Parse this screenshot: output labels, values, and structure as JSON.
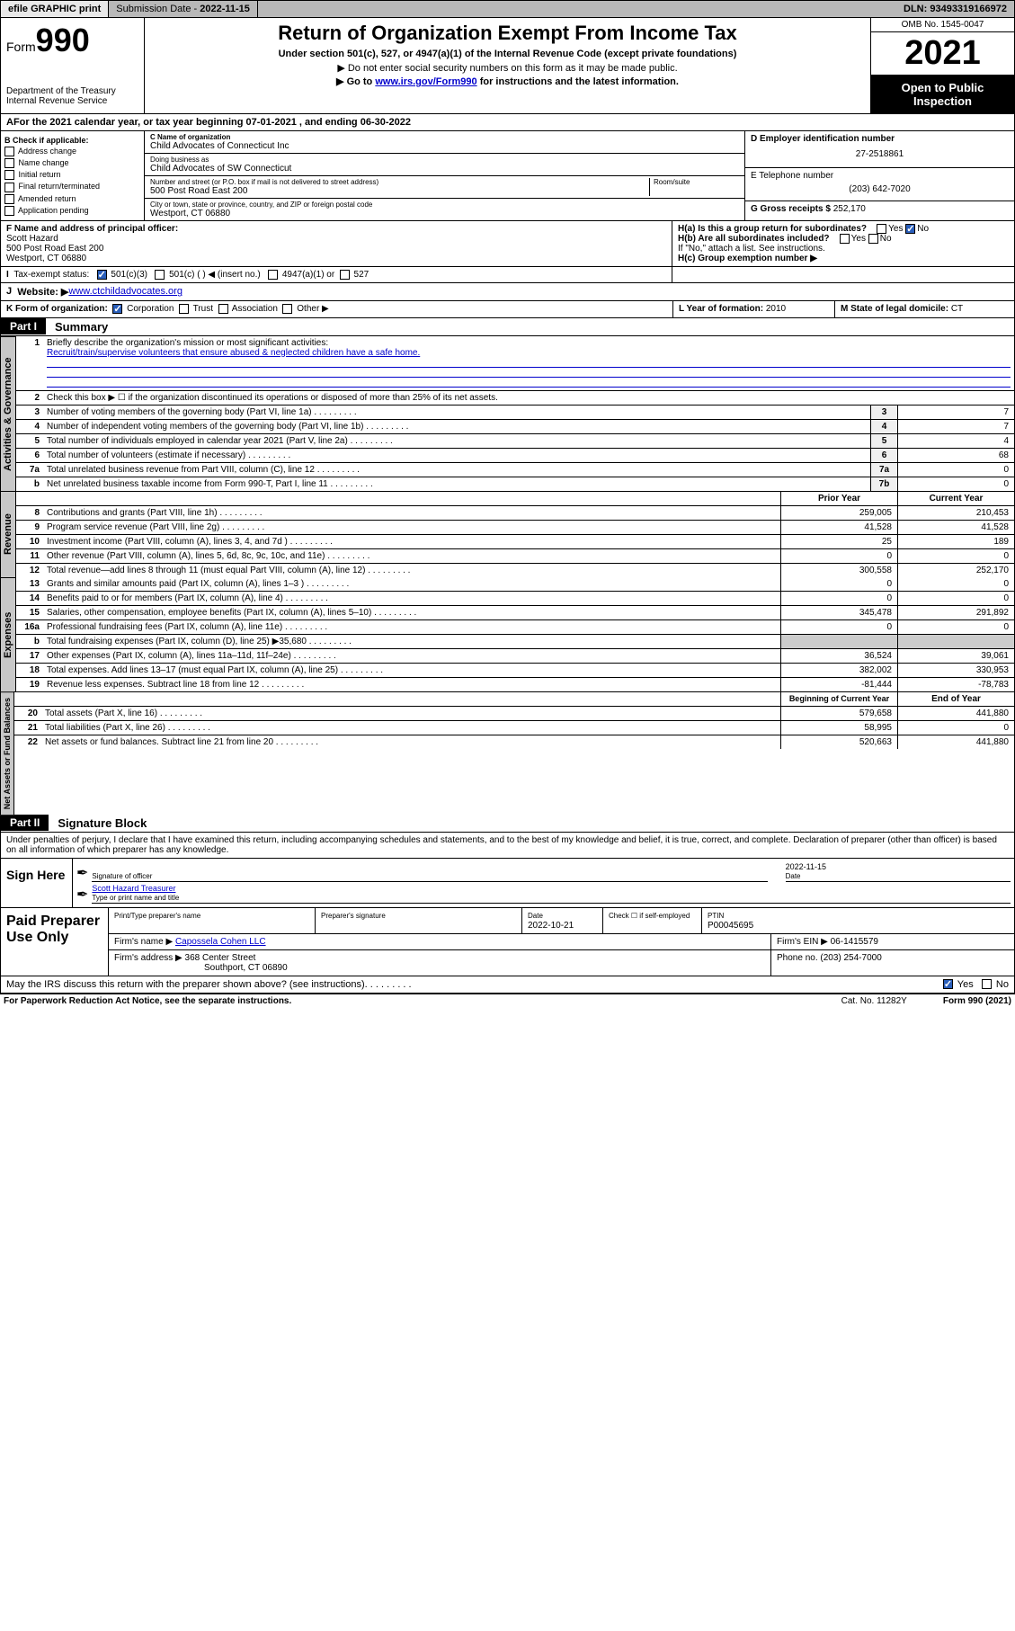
{
  "topbar": {
    "efile": "efile GRAPHIC print",
    "submission_label": "Submission Date - ",
    "submission_date": "2022-11-15",
    "dln_label": "DLN: ",
    "dln": "93493319166972"
  },
  "header": {
    "form_prefix": "Form",
    "form_num": "990",
    "dept": "Department of the Treasury\nInternal Revenue Service",
    "title": "Return of Organization Exempt From Income Tax",
    "sub": "Under section 501(c), 527, or 4947(a)(1) of the Internal Revenue Code (except private foundations)",
    "note1": "▶ Do not enter social security numbers on this form as it may be made public.",
    "note2_pre": "▶ Go to ",
    "note2_link": "www.irs.gov/Form990",
    "note2_post": " for instructions and the latest information.",
    "omb": "OMB No. 1545-0047",
    "year": "2021",
    "inspect": "Open to Public Inspection"
  },
  "lineA": "For the 2021 calendar year, or tax year beginning 07-01-2021    , and ending 06-30-2022",
  "checkB": {
    "label": "B Check if applicable:",
    "items": [
      "Address change",
      "Name change",
      "Initial return",
      "Final return/terminated",
      "Amended return",
      "Application pending"
    ]
  },
  "blockC": {
    "name_label": "C Name of organization",
    "name": "Child Advocates of Connecticut Inc",
    "dba_label": "Doing business as",
    "dba": "Child Advocates of SW Connecticut",
    "street_label": "Number and street (or P.O. box if mail is not delivered to street address)",
    "room_label": "Room/suite",
    "street": "500 Post Road East 200",
    "city_label": "City or town, state or province, country, and ZIP or foreign postal code",
    "city": "Westport, CT  06880"
  },
  "blockD": {
    "ein_label": "D Employer identification number",
    "ein": "27-2518861",
    "tel_label": "E Telephone number",
    "tel": "(203) 642-7020",
    "gross_label": "G Gross receipts $ ",
    "gross": "252,170"
  },
  "blockF": {
    "label": "F  Name and address of principal officer:",
    "name": "Scott Hazard",
    "addr1": "500 Post Road East 200",
    "addr2": "Westport, CT  06880"
  },
  "blockH": {
    "a_label": "H(a)  Is this a group return for subordinates?",
    "yes": "Yes",
    "no": "No",
    "b_label": "H(b)  Are all subordinates included?",
    "b_note": "If \"No,\" attach a list. See instructions.",
    "c_label": "H(c)  Group exemption number ▶"
  },
  "lineI": {
    "label": "Tax-exempt status:",
    "opts": [
      "501(c)(3)",
      "501(c) (   ) ◀ (insert no.)",
      "4947(a)(1) or",
      "527"
    ]
  },
  "lineJ": {
    "label": "Website: ▶ ",
    "url": "www.ctchildadvocates.org"
  },
  "lineK": {
    "label": "K Form of organization:",
    "opts": [
      "Corporation",
      "Trust",
      "Association",
      "Other ▶"
    ]
  },
  "lineL": {
    "label": "L Year of formation: ",
    "val": "2010"
  },
  "lineM": {
    "label": "M State of legal domicile: ",
    "val": "CT"
  },
  "part1": {
    "hdr": "Part I",
    "title": "Summary"
  },
  "activities": {
    "tab": "Activities & Governance",
    "l1": "Briefly describe the organization's mission or most significant activities:",
    "l1_val": "Recruit/train/supervise volunteers that ensure abused & neglected children have a safe home.",
    "l2": "Check this box ▶ ☐  if the organization discontinued its operations or disposed of more than 25% of its net assets.",
    "rows": [
      {
        "n": "3",
        "t": "Number of voting members of the governing body (Part VI, line 1a)",
        "box": "3",
        "v": "7"
      },
      {
        "n": "4",
        "t": "Number of independent voting members of the governing body (Part VI, line 1b)",
        "box": "4",
        "v": "7"
      },
      {
        "n": "5",
        "t": "Total number of individuals employed in calendar year 2021 (Part V, line 2a)",
        "box": "5",
        "v": "4"
      },
      {
        "n": "6",
        "t": "Total number of volunteers (estimate if necessary)",
        "box": "6",
        "v": "68"
      },
      {
        "n": "7a",
        "t": "Total unrelated business revenue from Part VIII, column (C), line 12",
        "box": "7a",
        "v": "0"
      },
      {
        "n": "b",
        "t": "Net unrelated business taxable income from Form 990-T, Part I, line 11",
        "box": "7b",
        "v": "0"
      }
    ]
  },
  "revenue": {
    "tab": "Revenue",
    "col1": "Prior Year",
    "col2": "Current Year",
    "rows": [
      {
        "n": "8",
        "t": "Contributions and grants (Part VIII, line 1h)",
        "p": "259,005",
        "c": "210,453"
      },
      {
        "n": "9",
        "t": "Program service revenue (Part VIII, line 2g)",
        "p": "41,528",
        "c": "41,528"
      },
      {
        "n": "10",
        "t": "Investment income (Part VIII, column (A), lines 3, 4, and 7d )",
        "p": "25",
        "c": "189"
      },
      {
        "n": "11",
        "t": "Other revenue (Part VIII, column (A), lines 5, 6d, 8c, 9c, 10c, and 11e)",
        "p": "0",
        "c": "0"
      },
      {
        "n": "12",
        "t": "Total revenue—add lines 8 through 11 (must equal Part VIII, column (A), line 12)",
        "p": "300,558",
        "c": "252,170"
      }
    ]
  },
  "expenses": {
    "tab": "Expenses",
    "rows": [
      {
        "n": "13",
        "t": "Grants and similar amounts paid (Part IX, column (A), lines 1–3 )",
        "p": "0",
        "c": "0"
      },
      {
        "n": "14",
        "t": "Benefits paid to or for members (Part IX, column (A), line 4)",
        "p": "0",
        "c": "0"
      },
      {
        "n": "15",
        "t": "Salaries, other compensation, employee benefits (Part IX, column (A), lines 5–10)",
        "p": "345,478",
        "c": "291,892"
      },
      {
        "n": "16a",
        "t": "Professional fundraising fees (Part IX, column (A), line 11e)",
        "p": "0",
        "c": "0"
      },
      {
        "n": "b",
        "t": "Total fundraising expenses (Part IX, column (D), line 25) ▶35,680",
        "p": "",
        "c": "",
        "shade": true
      },
      {
        "n": "17",
        "t": "Other expenses (Part IX, column (A), lines 11a–11d, 11f–24e)",
        "p": "36,524",
        "c": "39,061"
      },
      {
        "n": "18",
        "t": "Total expenses. Add lines 13–17 (must equal Part IX, column (A), line 25)",
        "p": "382,002",
        "c": "330,953"
      },
      {
        "n": "19",
        "t": "Revenue less expenses. Subtract line 18 from line 12",
        "p": "-81,444",
        "c": "-78,783"
      }
    ]
  },
  "netassets": {
    "tab": "Net Assets or Fund Balances",
    "col1": "Beginning of Current Year",
    "col2": "End of Year",
    "rows": [
      {
        "n": "20",
        "t": "Total assets (Part X, line 16)",
        "p": "579,658",
        "c": "441,880"
      },
      {
        "n": "21",
        "t": "Total liabilities (Part X, line 26)",
        "p": "58,995",
        "c": "0"
      },
      {
        "n": "22",
        "t": "Net assets or fund balances. Subtract line 21 from line 20",
        "p": "520,663",
        "c": "441,880"
      }
    ]
  },
  "part2": {
    "hdr": "Part II",
    "title": "Signature Block"
  },
  "sig": {
    "penalties": "Under penalties of perjury, I declare that I have examined this return, including accompanying schedules and statements, and to the best of my knowledge and belief, it is true, correct, and complete. Declaration of preparer (other than officer) is based on all information of which preparer has any knowledge.",
    "here": "Sign Here",
    "sig_label": "Signature of officer",
    "date_label": "Date",
    "date": "2022-11-15",
    "name_label": "Type or print name and title",
    "name": "Scott Hazard  Treasurer"
  },
  "paid": {
    "label": "Paid Preparer Use Only",
    "h1": "Print/Type preparer's name",
    "h2": "Preparer's signature",
    "h3": "Date",
    "h3v": "2022-10-21",
    "h4": "Check ☐ if self-employed",
    "h5": "PTIN",
    "h5v": "P00045695",
    "firm_label": "Firm's name    ▶ ",
    "firm": "Capossela Cohen LLC",
    "ein_label": "Firm's EIN ▶ ",
    "ein": "06-1415579",
    "addr_label": "Firm's address ▶ ",
    "addr1": "368 Center Street",
    "addr2": "Southport, CT  06890",
    "phone_label": "Phone no. ",
    "phone": "(203) 254-7000"
  },
  "discuss": "May the IRS discuss this return with the preparer shown above? (see instructions)",
  "footer": {
    "pra": "For Paperwork Reduction Act Notice, see the separate instructions.",
    "cat": "Cat. No. 11282Y",
    "form": "Form 990 (2021)"
  }
}
